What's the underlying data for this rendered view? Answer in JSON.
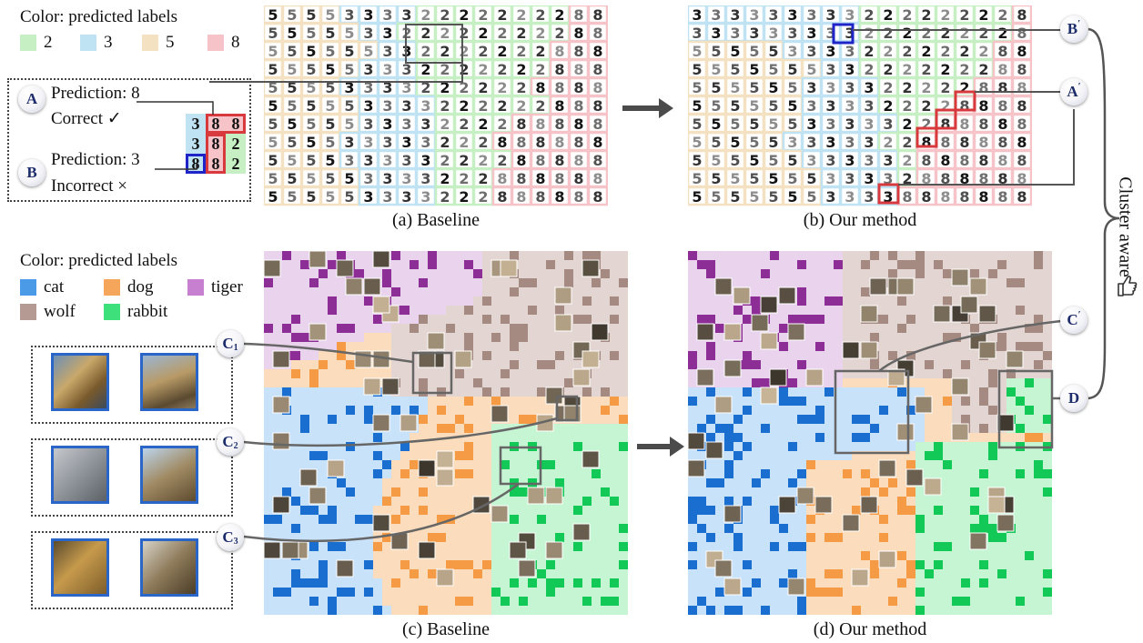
{
  "legend_top": {
    "title": "Color: predicted labels",
    "items": [
      {
        "label": "2",
        "color": "#c7efc4"
      },
      {
        "label": "3",
        "color": "#bfe3f3"
      },
      {
        "label": "5",
        "color": "#f4e1c2"
      },
      {
        "label": "8",
        "color": "#f5c3c8"
      }
    ]
  },
  "example_box": {
    "a_badge": "A",
    "a_line1": "Prediction: 8",
    "a_line2": "Correct ✓",
    "b_badge": "B",
    "b_line1": "Prediction: 3",
    "b_line2": "Incorrect ×",
    "digits_top": [
      "3",
      "8",
      "8"
    ],
    "digits_mid": [
      "3",
      "8",
      "2"
    ],
    "digits_bot": [
      "8",
      "8",
      "2"
    ]
  },
  "captions": {
    "a": "(a) Baseline",
    "b": "(b) Our method",
    "c": "(c) Baseline",
    "d": "(d) Our method"
  },
  "legend_bottom": {
    "title": "Color: predicted labels",
    "items": [
      {
        "label": "cat",
        "color": "#4a9ae8"
      },
      {
        "label": "dog",
        "color": "#f5a65b"
      },
      {
        "label": "tiger",
        "color": "#c77fcf"
      },
      {
        "label": "wolf",
        "color": "#b49a92"
      },
      {
        "label": "rabbit",
        "color": "#3de07a"
      }
    ]
  },
  "badges": {
    "c1": {
      "main": "C",
      "sub": "1"
    },
    "c2": {
      "main": "C",
      "sub": "2"
    },
    "c3": {
      "main": "C",
      "sub": "3"
    },
    "b_prime": {
      "main": "B",
      "sup": "′"
    },
    "a_prime": {
      "main": "A",
      "sup": "′"
    },
    "c_prime": {
      "main": "C",
      "sup": "′"
    },
    "d": {
      "main": "D"
    }
  },
  "side_label": "Cluster aware",
  "colors": {
    "digit_2": "#c7efc4",
    "digit_3": "#bfe3f3",
    "digit_5": "#f4e1c2",
    "digit_8": "#f5c3c8",
    "cat_light": "#c8e2fa",
    "cat_dark": "#1a6ed0",
    "dog_light": "#fbdcbc",
    "dog_dark": "#f59a45",
    "tiger_light": "#ead3ec",
    "tiger_dark": "#8c2e96",
    "wolf_light": "#e3d5d1",
    "wolf_dark": "#a58a82",
    "rabbit_light": "#c5f5d3",
    "rabbit_dark": "#12c957",
    "highlight_red": "#d8393d",
    "highlight_blue": "#1e24c8"
  }
}
